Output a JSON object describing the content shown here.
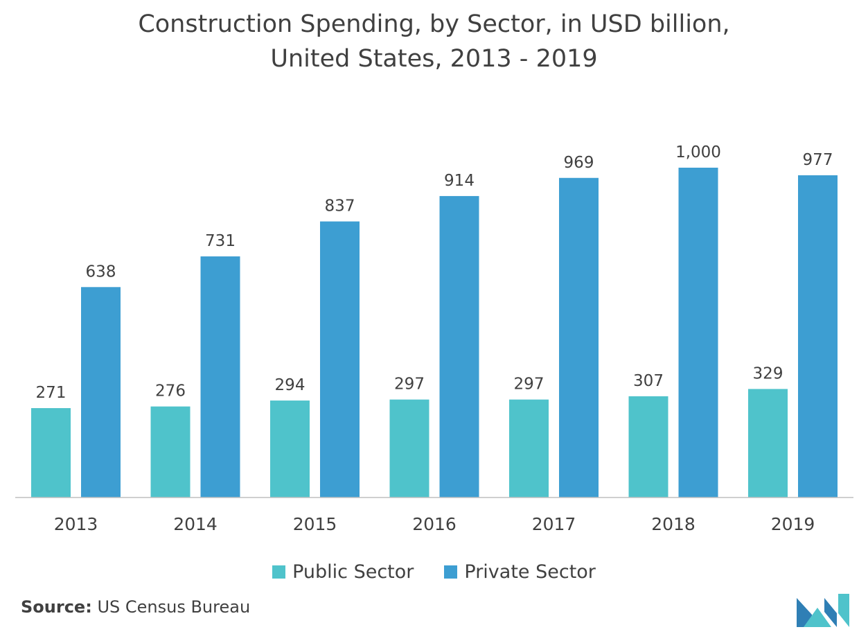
{
  "chart_data": {
    "type": "bar",
    "title_line1": "Construction Spending, by Sector, in USD billion,",
    "title_line2": "United States, 2013 - 2019",
    "xlabel": "",
    "ylabel": "",
    "categories": [
      "2013",
      "2014",
      "2015",
      "2016",
      "2017",
      "2018",
      "2019"
    ],
    "series": [
      {
        "name": "Public Sector",
        "color": "#4fc3cb",
        "values": [
          271,
          276,
          294,
          297,
          297,
          307,
          329
        ],
        "labels": [
          "271",
          "276",
          "294",
          "297",
          "297",
          "307",
          "329"
        ]
      },
      {
        "name": "Private Sector",
        "color": "#3d9ed2",
        "values": [
          638,
          731,
          837,
          914,
          969,
          1000,
          977
        ],
        "labels": [
          "638",
          "731",
          "837",
          "914",
          "969",
          "1,000",
          "977"
        ]
      }
    ],
    "ylim": [
      0,
      1000
    ],
    "grid": false,
    "legend_position": "bottom"
  },
  "source": {
    "label": "Source:",
    "text": "US Census Bureau"
  },
  "logo": {
    "icon": "mordor-logo-icon",
    "color_light": "#4fc3cb",
    "color_dark": "#2f7fb5"
  }
}
